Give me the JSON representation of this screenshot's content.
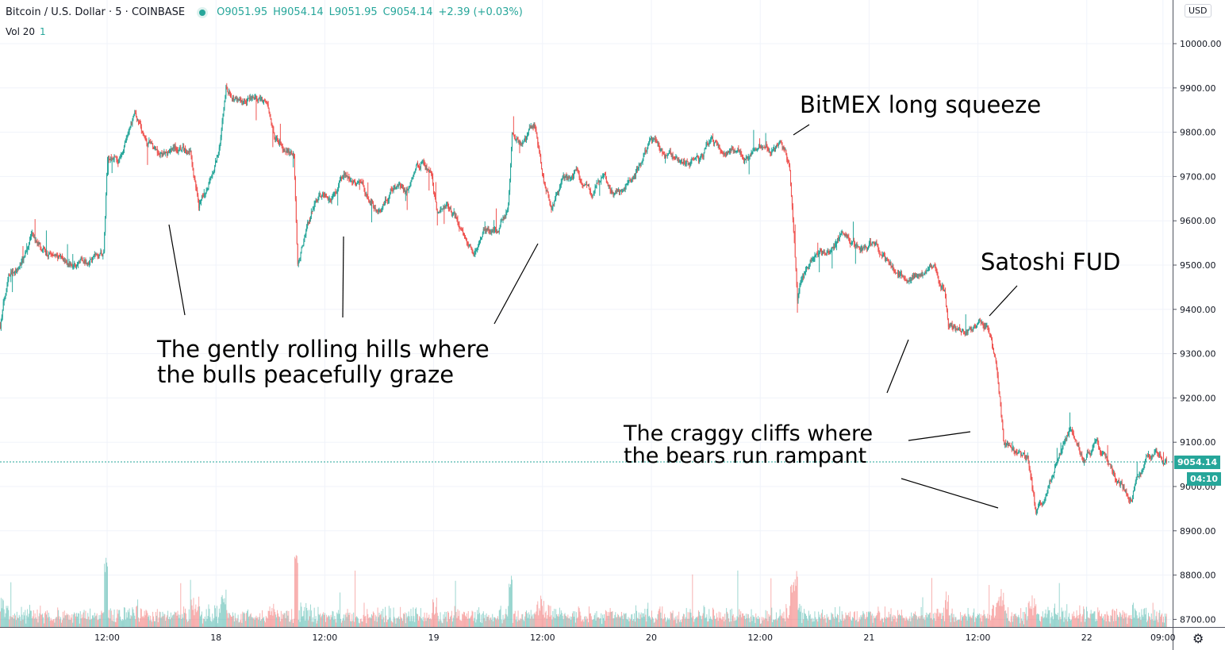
{
  "header": {
    "symbol": "Bitcoin / U.S. Dollar · 5 · COINBASE",
    "open": "O9051.95",
    "high": "H9054.14",
    "low": "L9051.95",
    "close": "C9054.14",
    "change": "+2.39 (+0.03%)",
    "volume_label": "Vol 20",
    "volume_value": "1",
    "currency_button": "USD"
  },
  "price_axis": {
    "ticks": [
      "10000.00",
      "9900.00",
      "9800.00",
      "9700.00",
      "9600.00",
      "9500.00",
      "9400.00",
      "9300.00",
      "9200.00",
      "9100.00",
      "9000.00",
      "8900.00",
      "8800.00",
      "8700.00"
    ],
    "last_price": "9054.14",
    "countdown": "04:10"
  },
  "time_axis": {
    "ticks": [
      "12:00",
      "18",
      "12:00",
      "19",
      "12:00",
      "20",
      "12:00",
      "21",
      "12:00",
      "22",
      "09:00"
    ]
  },
  "annotations": {
    "hills_line1": "The gently rolling hills where",
    "hills_line2": "the bulls peacefully graze",
    "bitmex": "BitMEX long squeeze",
    "satoshi": "Satoshi FUD",
    "cliffs_line1": "The craggy cliffs where",
    "cliffs_line2": "the bears run rampant"
  },
  "colors": {
    "up": "#26a69a",
    "down": "#ef5350",
    "grid": "#f0f3fa"
  },
  "icons": {
    "settings": "gear-icon"
  },
  "chart_data": {
    "type": "candlestick",
    "interval": "5",
    "ylim": [
      8700,
      10000
    ],
    "grid": true,
    "price_path": [
      [
        "05-17 00:10",
        9364
      ],
      [
        "05-17 01:05",
        9489
      ],
      [
        "05-17 02:50",
        9525
      ],
      [
        "05-17 03:40",
        9561
      ],
      [
        "05-17 05:25",
        9525
      ],
      [
        "05-17 07:10",
        9507
      ],
      [
        "05-17 08:55",
        9498
      ],
      [
        "05-17 10:40",
        9516
      ],
      [
        "05-17 11:35",
        9525
      ],
      [
        "05-17 12:00",
        9740
      ],
      [
        "05-17 13:20",
        9740
      ],
      [
        "05-17 15:05",
        9830
      ],
      [
        "05-17 16:25",
        9776
      ],
      [
        "05-17 17:40",
        9749
      ],
      [
        "05-17 19:25",
        9767
      ],
      [
        "05-17 21:10",
        9758
      ],
      [
        "05-17 22:05",
        9633
      ],
      [
        "05-17 23:20",
        9686
      ],
      [
        "05-18 00:15",
        9758
      ],
      [
        "05-18 01:05",
        9901
      ],
      [
        "05-18 02:25",
        9883
      ],
      [
        "05-18 04:10",
        9865
      ],
      [
        "05-18 05:30",
        9865
      ],
      [
        "05-18 06:25",
        9794
      ],
      [
        "05-18 07:40",
        9767
      ],
      [
        "05-18 08:35",
        9758
      ],
      [
        "05-18 09:00",
        9507
      ],
      [
        "05-18 09:55",
        9579
      ],
      [
        "05-18 11:10",
        9651
      ],
      [
        "05-18 12:55",
        9668
      ],
      [
        "05-18 14:15",
        9713
      ],
      [
        "05-18 15:35",
        9677
      ],
      [
        "05-18 16:55",
        9633
      ],
      [
        "05-18 18:10",
        9615
      ],
      [
        "05-18 19:35",
        9686
      ],
      [
        "05-18 20:50",
        9668
      ],
      [
        "05-18 22:35",
        9731
      ],
      [
        "05-18 23:50",
        9713
      ],
      [
        "05-19 00:20",
        9624
      ],
      [
        "05-19 01:40",
        9633
      ],
      [
        "05-19 03:00",
        9588
      ],
      [
        "05-19 04:20",
        9525
      ],
      [
        "05-19 05:35",
        9579
      ],
      [
        "05-19 06:55",
        9588
      ],
      [
        "05-19 08:15",
        9633
      ],
      [
        "05-19 08:40",
        9794
      ],
      [
        "05-19 10:00",
        9776
      ],
      [
        "05-19 11:15",
        9812
      ],
      [
        "05-19 12:10",
        9686
      ],
      [
        "05-19 13:05",
        9633
      ],
      [
        "05-19 14:20",
        9686
      ],
      [
        "05-19 15:40",
        9713
      ],
      [
        "05-19 17:25",
        9668
      ],
      [
        "05-19 18:45",
        9695
      ],
      [
        "05-19 20:05",
        9668
      ],
      [
        "05-19 21:25",
        9677
      ],
      [
        "05-19 22:40",
        9722
      ],
      [
        "05-20 00:00",
        9785
      ],
      [
        "05-20 01:45",
        9740
      ],
      [
        "05-20 03:30",
        9740
      ],
      [
        "05-20 05:15",
        9731
      ],
      [
        "05-20 06:35",
        9785
      ],
      [
        "05-20 07:25",
        9767
      ],
      [
        "05-20 09:10",
        9767
      ],
      [
        "05-20 10:55",
        9749
      ],
      [
        "05-20 12:40",
        9767
      ],
      [
        "05-20 14:25",
        9776
      ],
      [
        "05-20 15:20",
        9722
      ],
      [
        "05-20 15:45",
        9579
      ],
      [
        "05-20 16:10",
        9418
      ],
      [
        "05-20 16:40",
        9471
      ],
      [
        "05-20 18:00",
        9525
      ],
      [
        "05-20 19:40",
        9525
      ],
      [
        "05-20 21:00",
        9570
      ],
      [
        "05-20 22:45",
        9543
      ],
      [
        "05-21 00:30",
        9552
      ],
      [
        "05-21 02:15",
        9507
      ],
      [
        "05-21 04:05",
        9471
      ],
      [
        "05-21 05:45",
        9480
      ],
      [
        "05-21 07:05",
        9498
      ],
      [
        "05-21 08:25",
        9453
      ],
      [
        "05-21 08:50",
        9364
      ],
      [
        "05-21 10:10",
        9346
      ],
      [
        "05-21 11:55",
        9364
      ],
      [
        "05-21 13:15",
        9364
      ],
      [
        "05-21 14:05",
        9292
      ],
      [
        "05-21 15:00",
        9095
      ],
      [
        "05-21 16:15",
        9077
      ],
      [
        "05-21 17:35",
        9059
      ],
      [
        "05-21 18:30",
        8934
      ],
      [
        "05-21 19:20",
        8970
      ],
      [
        "05-21 20:40",
        9041
      ],
      [
        "05-21 22:25",
        9131
      ],
      [
        "05-21 23:45",
        9059
      ],
      [
        "05-22 01:05",
        9095
      ],
      [
        "05-22 02:20",
        9059
      ],
      [
        "05-22 03:40",
        9005
      ],
      [
        "05-22 05:00",
        8978
      ],
      [
        "05-22 06:20",
        9041
      ],
      [
        "05-22 07:35",
        9086
      ],
      [
        "05-22 08:55",
        9054.14
      ]
    ],
    "last_price": 9054.14
  }
}
